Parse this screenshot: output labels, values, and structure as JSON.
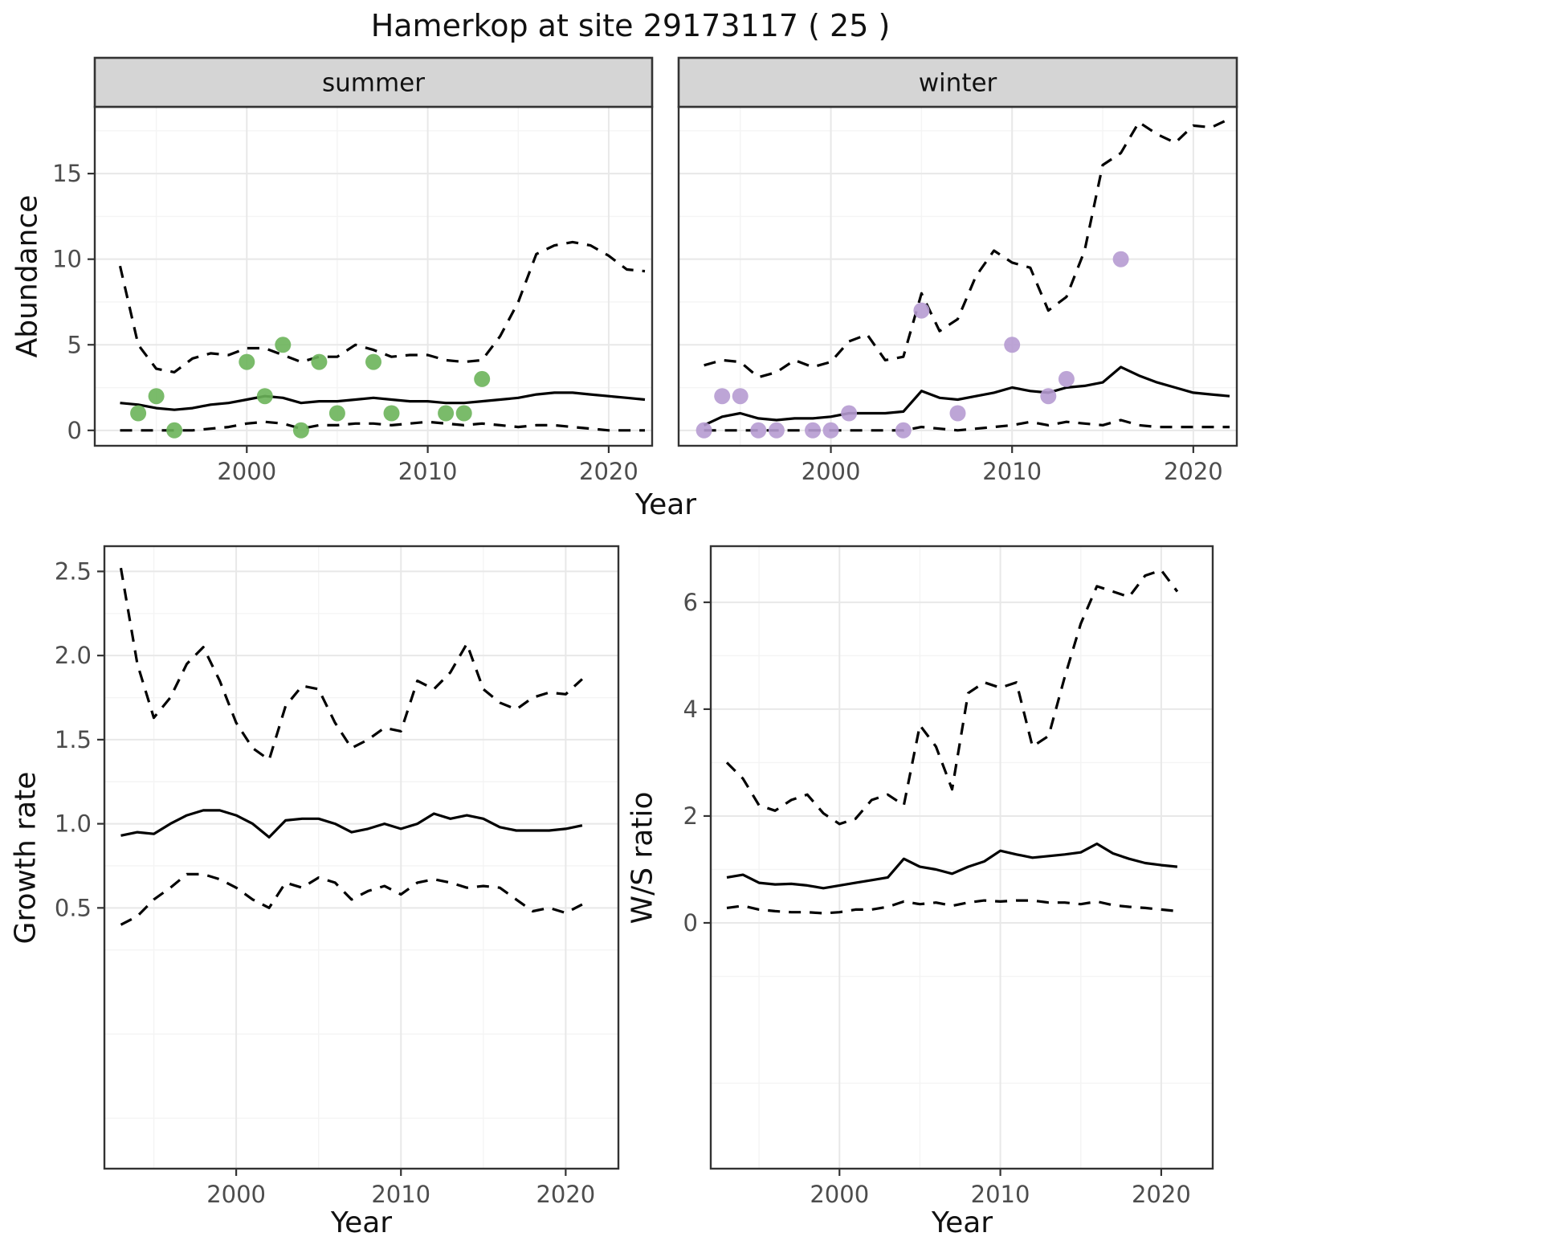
{
  "title": "Hamerkop at site 29173117 ( 25 )",
  "colors": {
    "summer_points": "#6CB45A",
    "winter_points": "#B69BD2",
    "line": "#000000",
    "strip_fill": "#D5D5D5",
    "strip_border": "#333333",
    "panel_border": "#333333",
    "grid_major": "#E8E8E8",
    "grid_minor": "#F4F4F4",
    "tick_label": "#4D4D4D",
    "tick_mark": "#333333"
  },
  "chart_data": [
    {
      "id": "abundance-summer",
      "type": "line",
      "facet": "summer",
      "xlabel": "Year",
      "ylabel": "Abundance",
      "xlim": [
        1991.6,
        2022.4
      ],
      "ylim": [
        -0.9,
        18.9
      ],
      "xticks": [
        2000,
        2010,
        2020
      ],
      "xtick_labels": [
        "2000",
        "2010",
        "2020"
      ],
      "yticks": [
        0,
        5,
        10,
        15
      ],
      "ytick_labels": [
        "0",
        "5",
        "10",
        "15"
      ],
      "grid": true,
      "legend": "none",
      "x": [
        1993,
        1994,
        1995,
        1996,
        1997,
        1998,
        1999,
        2000,
        2001,
        2002,
        2003,
        2004,
        2005,
        2006,
        2007,
        2008,
        2009,
        2010,
        2011,
        2012,
        2013,
        2014,
        2015,
        2016,
        2017,
        2018,
        2019,
        2020,
        2021,
        2022
      ],
      "series": [
        {
          "name": "upper-ci",
          "style": "dashed",
          "y": [
            9.6,
            5.0,
            3.6,
            3.4,
            4.2,
            4.5,
            4.4,
            4.8,
            4.8,
            4.4,
            4.0,
            4.3,
            4.3,
            5.0,
            4.7,
            4.3,
            4.4,
            4.4,
            4.1,
            4.0,
            4.1,
            5.5,
            7.5,
            10.3,
            10.8,
            11.0,
            10.8,
            10.2,
            9.4,
            9.3
          ]
        },
        {
          "name": "mean",
          "style": "solid",
          "y": [
            1.6,
            1.5,
            1.3,
            1.2,
            1.3,
            1.5,
            1.6,
            1.8,
            2.0,
            1.9,
            1.6,
            1.7,
            1.7,
            1.8,
            1.9,
            1.8,
            1.7,
            1.7,
            1.6,
            1.6,
            1.7,
            1.8,
            1.9,
            2.1,
            2.2,
            2.2,
            2.1,
            2.0,
            1.9,
            1.8
          ]
        },
        {
          "name": "lower-ci",
          "style": "dashed",
          "y": [
            0,
            0,
            0,
            0,
            0,
            0.1,
            0.2,
            0.4,
            0.5,
            0.4,
            0.1,
            0.3,
            0.3,
            0.4,
            0.4,
            0.3,
            0.4,
            0.5,
            0.4,
            0.3,
            0.4,
            0.3,
            0.2,
            0.3,
            0.3,
            0.2,
            0.1,
            0,
            0,
            0
          ]
        }
      ],
      "points": {
        "name": "observed-counts",
        "color_key": "summer_points",
        "x": [
          1994,
          1995,
          1996,
          2000,
          2001,
          2002,
          2003,
          2004,
          2005,
          2007,
          2008,
          2011,
          2012,
          2013
        ],
        "y": [
          1,
          2,
          0,
          4,
          2,
          5,
          0,
          4,
          1,
          4,
          1,
          1,
          1,
          3
        ]
      }
    },
    {
      "id": "abundance-winter",
      "type": "line",
      "facet": "winter",
      "xlabel": "",
      "ylabel": "",
      "xlim": [
        1991.6,
        2022.4
      ],
      "ylim": [
        -0.9,
        18.9
      ],
      "xticks": [
        2000,
        2010,
        2020
      ],
      "xtick_labels": [
        "2000",
        "2010",
        "2020"
      ],
      "yticks": [
        0,
        5,
        10,
        15
      ],
      "ytick_labels": [
        "0",
        "5",
        "10",
        "15"
      ],
      "grid": true,
      "legend": "none",
      "x": [
        1993,
        1994,
        1995,
        1996,
        1997,
        1998,
        1999,
        2000,
        2001,
        2002,
        2003,
        2004,
        2005,
        2006,
        2007,
        2008,
        2009,
        2010,
        2011,
        2012,
        2013,
        2014,
        2015,
        2016,
        2017,
        2018,
        2019,
        2020,
        2021,
        2022
      ],
      "series": [
        {
          "name": "upper-ci",
          "style": "dashed",
          "y": [
            3.8,
            4.1,
            4.0,
            3.1,
            3.4,
            4.1,
            3.7,
            4.0,
            5.2,
            5.6,
            4.1,
            4.3,
            8.0,
            5.8,
            6.5,
            9.0,
            10.5,
            9.8,
            9.5,
            7.0,
            7.8,
            10.5,
            15.5,
            16.2,
            18.0,
            17.3,
            16.8,
            17.8,
            17.7,
            18.2
          ]
        },
        {
          "name": "mean",
          "style": "solid",
          "y": [
            0.3,
            0.8,
            1.0,
            0.7,
            0.6,
            0.7,
            0.7,
            0.8,
            1.0,
            1.0,
            1.0,
            1.1,
            2.3,
            1.9,
            1.8,
            2.0,
            2.2,
            2.5,
            2.3,
            2.2,
            2.5,
            2.6,
            2.8,
            3.7,
            3.2,
            2.8,
            2.5,
            2.2,
            2.1,
            2.0
          ]
        },
        {
          "name": "lower-ci",
          "style": "dashed",
          "y": [
            0,
            0,
            0,
            0,
            0,
            0,
            0,
            0,
            0,
            0,
            0,
            0,
            0.2,
            0.1,
            0,
            0.1,
            0.2,
            0.3,
            0.5,
            0.3,
            0.5,
            0.4,
            0.3,
            0.6,
            0.3,
            0.2,
            0.2,
            0.2,
            0.2,
            0.2
          ]
        }
      ],
      "points": {
        "name": "observed-counts",
        "color_key": "winter_points",
        "x": [
          1993,
          1994,
          1995,
          1996,
          1997,
          1999,
          2000,
          2001,
          2004,
          2005,
          2007,
          2010,
          2012,
          2013,
          2016
        ],
        "y": [
          0,
          2,
          2,
          0,
          0,
          0,
          0,
          1,
          0,
          7,
          1,
          5,
          2,
          3,
          10
        ]
      }
    },
    {
      "id": "growth-rate",
      "type": "line",
      "facet": "",
      "xlabel": "Year",
      "ylabel": "Growth rate",
      "xlim": [
        1992,
        2023.2
      ],
      "ylim": [
        -1.05,
        2.65
      ],
      "xticks": [
        2000,
        2010,
        2020
      ],
      "xtick_labels": [
        "2000",
        "2010",
        "2020"
      ],
      "yticks": [
        0.5,
        1.0,
        1.5,
        2.0,
        2.5
      ],
      "ytick_labels": [
        "0.5",
        "1.0",
        "1.5",
        "2.0",
        "2.5"
      ],
      "grid": true,
      "legend": "none",
      "x": [
        1993,
        1994,
        1995,
        1996,
        1997,
        1998,
        1999,
        2000,
        2001,
        2002,
        2003,
        2004,
        2005,
        2006,
        2007,
        2008,
        2009,
        2010,
        2011,
        2012,
        2013,
        2014,
        2015,
        2016,
        2017,
        2018,
        2019,
        2020,
        2021
      ],
      "series": [
        {
          "name": "upper-ci",
          "style": "dashed",
          "y": [
            2.52,
            1.95,
            1.63,
            1.75,
            1.95,
            2.05,
            1.85,
            1.6,
            1.45,
            1.38,
            1.7,
            1.82,
            1.8,
            1.6,
            1.45,
            1.5,
            1.57,
            1.55,
            1.85,
            1.8,
            1.9,
            2.07,
            1.8,
            1.72,
            1.68,
            1.75,
            1.78,
            1.77,
            1.86
          ]
        },
        {
          "name": "mean",
          "style": "solid",
          "y": [
            0.93,
            0.95,
            0.94,
            1.0,
            1.05,
            1.08,
            1.08,
            1.05,
            1.0,
            0.92,
            1.02,
            1.03,
            1.03,
            1.0,
            0.95,
            0.97,
            1.0,
            0.97,
            1.0,
            1.06,
            1.03,
            1.05,
            1.03,
            0.98,
            0.96,
            0.96,
            0.96,
            0.97,
            0.99
          ]
        },
        {
          "name": "lower-ci",
          "style": "dashed",
          "y": [
            0.4,
            0.45,
            0.55,
            0.62,
            0.7,
            0.7,
            0.67,
            0.62,
            0.55,
            0.5,
            0.65,
            0.62,
            0.68,
            0.65,
            0.55,
            0.6,
            0.63,
            0.58,
            0.65,
            0.67,
            0.65,
            0.62,
            0.63,
            0.62,
            0.55,
            0.48,
            0.5,
            0.47,
            0.52
          ]
        }
      ]
    },
    {
      "id": "ws-ratio",
      "type": "line",
      "facet": "",
      "xlabel": "Year",
      "ylabel": "W/S ratio",
      "xlim": [
        1992,
        2023.2
      ],
      "ylim": [
        -4.6,
        7.05
      ],
      "xticks": [
        2000,
        2010,
        2020
      ],
      "xtick_labels": [
        "2000",
        "2010",
        "2020"
      ],
      "yticks": [
        0,
        2,
        4,
        6
      ],
      "ytick_labels": [
        "0",
        "2",
        "4",
        "6"
      ],
      "grid": true,
      "legend": "none",
      "x": [
        1993,
        1994,
        1995,
        1996,
        1997,
        1998,
        1999,
        2000,
        2001,
        2002,
        2003,
        2004,
        2005,
        2006,
        2007,
        2008,
        2009,
        2010,
        2011,
        2012,
        2013,
        2014,
        2015,
        2016,
        2017,
        2018,
        2019,
        2020,
        2021
      ],
      "series": [
        {
          "name": "upper-ci",
          "style": "dashed",
          "y": [
            3.0,
            2.7,
            2.2,
            2.1,
            2.3,
            2.4,
            2.05,
            1.85,
            1.95,
            2.3,
            2.4,
            2.2,
            3.7,
            3.3,
            2.5,
            4.3,
            4.5,
            4.4,
            4.5,
            3.3,
            3.5,
            4.6,
            5.6,
            6.3,
            6.2,
            6.1,
            6.5,
            6.6,
            6.2
          ]
        },
        {
          "name": "mean",
          "style": "solid",
          "y": [
            0.85,
            0.9,
            0.75,
            0.72,
            0.73,
            0.7,
            0.65,
            0.7,
            0.75,
            0.8,
            0.85,
            1.2,
            1.05,
            1.0,
            0.92,
            1.05,
            1.15,
            1.35,
            1.28,
            1.22,
            1.25,
            1.28,
            1.32,
            1.48,
            1.3,
            1.2,
            1.12,
            1.08,
            1.05
          ]
        },
        {
          "name": "lower-ci",
          "style": "dashed",
          "y": [
            0.28,
            0.32,
            0.25,
            0.22,
            0.2,
            0.2,
            0.18,
            0.2,
            0.25,
            0.25,
            0.3,
            0.4,
            0.35,
            0.38,
            0.32,
            0.38,
            0.42,
            0.4,
            0.42,
            0.42,
            0.38,
            0.38,
            0.35,
            0.4,
            0.33,
            0.3,
            0.28,
            0.25,
            0.22
          ]
        }
      ]
    }
  ]
}
